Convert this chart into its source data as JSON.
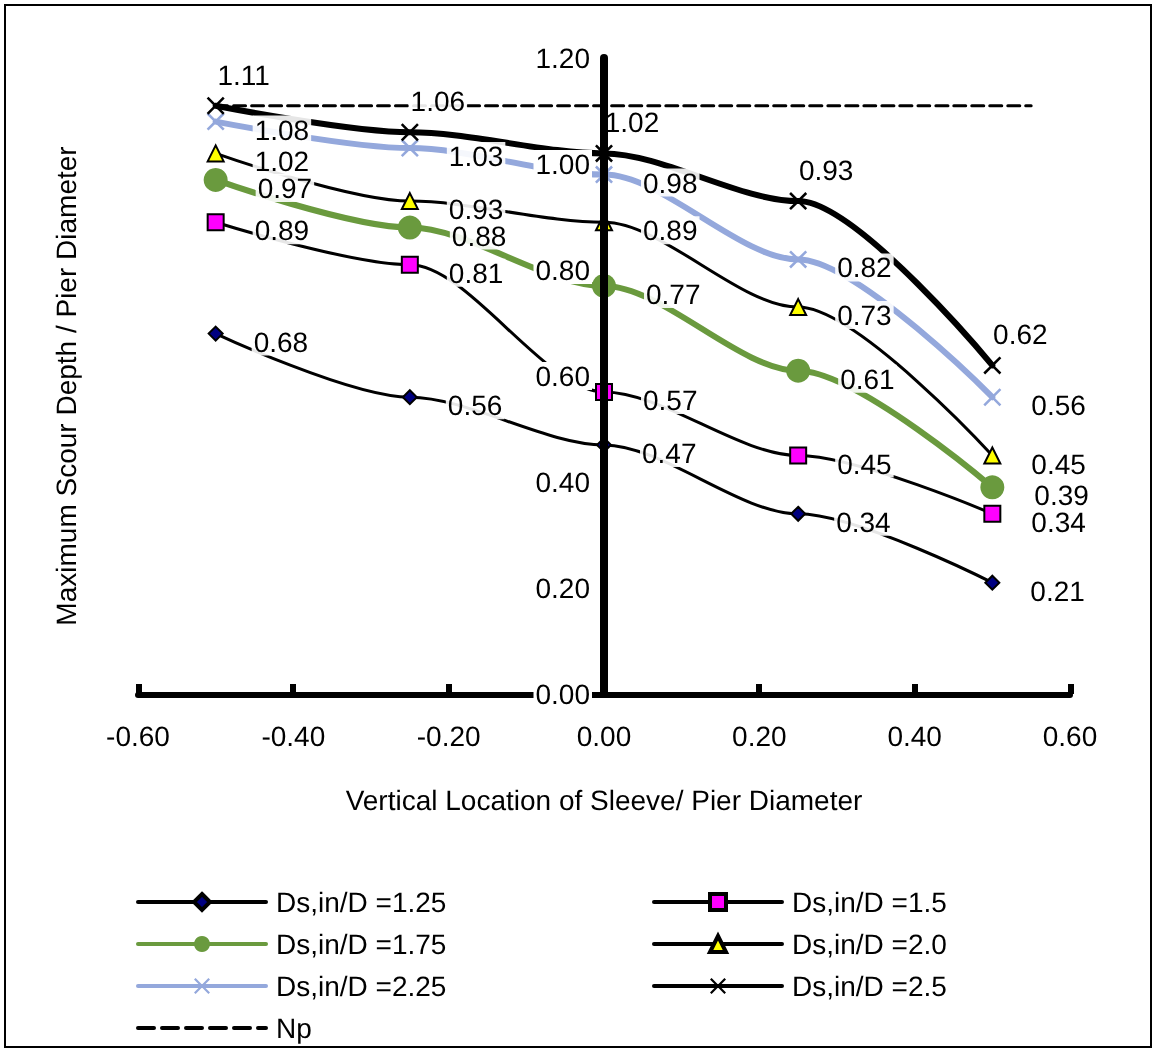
{
  "chart_data": {
    "type": "line",
    "xlabel": "Vertical Location of Sleeve/ Pier Diameter",
    "ylabel": "Maximum Scour Depth / Pier Diameter",
    "x": [
      -0.5,
      -0.25,
      0,
      0.25,
      0.5
    ],
    "xlim": [
      -0.6,
      0.6
    ],
    "xticks": [
      {
        "value": -0.6,
        "label": "-0.60"
      },
      {
        "value": -0.4,
        "label": "-0.40"
      },
      {
        "value": -0.2,
        "label": "-0.20"
      },
      {
        "value": 0,
        "label": "0.00"
      },
      {
        "value": 0.2,
        "label": "0.20"
      },
      {
        "value": 0.4,
        "label": "0.40"
      },
      {
        "value": 0.6,
        "label": "0.60"
      }
    ],
    "ylim": [
      0,
      1.2
    ],
    "yticks": [
      {
        "value": 0,
        "label": "0.00"
      },
      {
        "value": 0.2,
        "label": "0.20"
      },
      {
        "value": 0.4,
        "label": "0.40"
      },
      {
        "value": 0.6,
        "label": "0.60"
      },
      {
        "value": 0.8,
        "label": "0.80"
      },
      {
        "value": 1,
        "label": "1.00"
      },
      {
        "value": 1.2,
        "label": "1.20"
      }
    ],
    "grid": false,
    "legend": "bottom",
    "data_labels": true,
    "line_style": "solid",
    "series": [
      {
        "name": "Ds,in/D =1.25",
        "color": "#000080",
        "marker": "diamond",
        "values": [
          0.68,
          0.56,
          0.47,
          0.34,
          0.21
        ]
      },
      {
        "name": "Ds,in/D =1.5",
        "color": "#ff00ff",
        "marker": "square",
        "values": [
          0.89,
          0.81,
          0.57,
          0.45,
          0.34
        ]
      },
      {
        "name": "Ds,in/D =1.75",
        "color": "#6a9a3e",
        "marker": "circle",
        "values": [
          0.97,
          0.88,
          0.77,
          0.61,
          0.39
        ]
      },
      {
        "name": "Ds,in/D =2.0",
        "color": "#ffff00",
        "marker": "triangle",
        "values": [
          1.02,
          0.93,
          0.89,
          0.73,
          0.45
        ]
      },
      {
        "name": "Ds,in/D =2.25",
        "color": "#94a8dc",
        "marker": "cross",
        "values": [
          1.08,
          1.03,
          0.98,
          0.82,
          0.56
        ]
      },
      {
        "name": "Ds,in/D =2.5",
        "color": "#000000",
        "marker": "cross",
        "values": [
          1.11,
          1.06,
          1.02,
          0.93,
          0.62
        ]
      },
      {
        "name": "Np",
        "color": "#000000",
        "marker": "none",
        "line_style": "dashed",
        "x": [
          -0.5,
          0.55
        ],
        "values": [
          1.11,
          1.11
        ],
        "value_labels": [
          null,
          null
        ]
      }
    ]
  }
}
